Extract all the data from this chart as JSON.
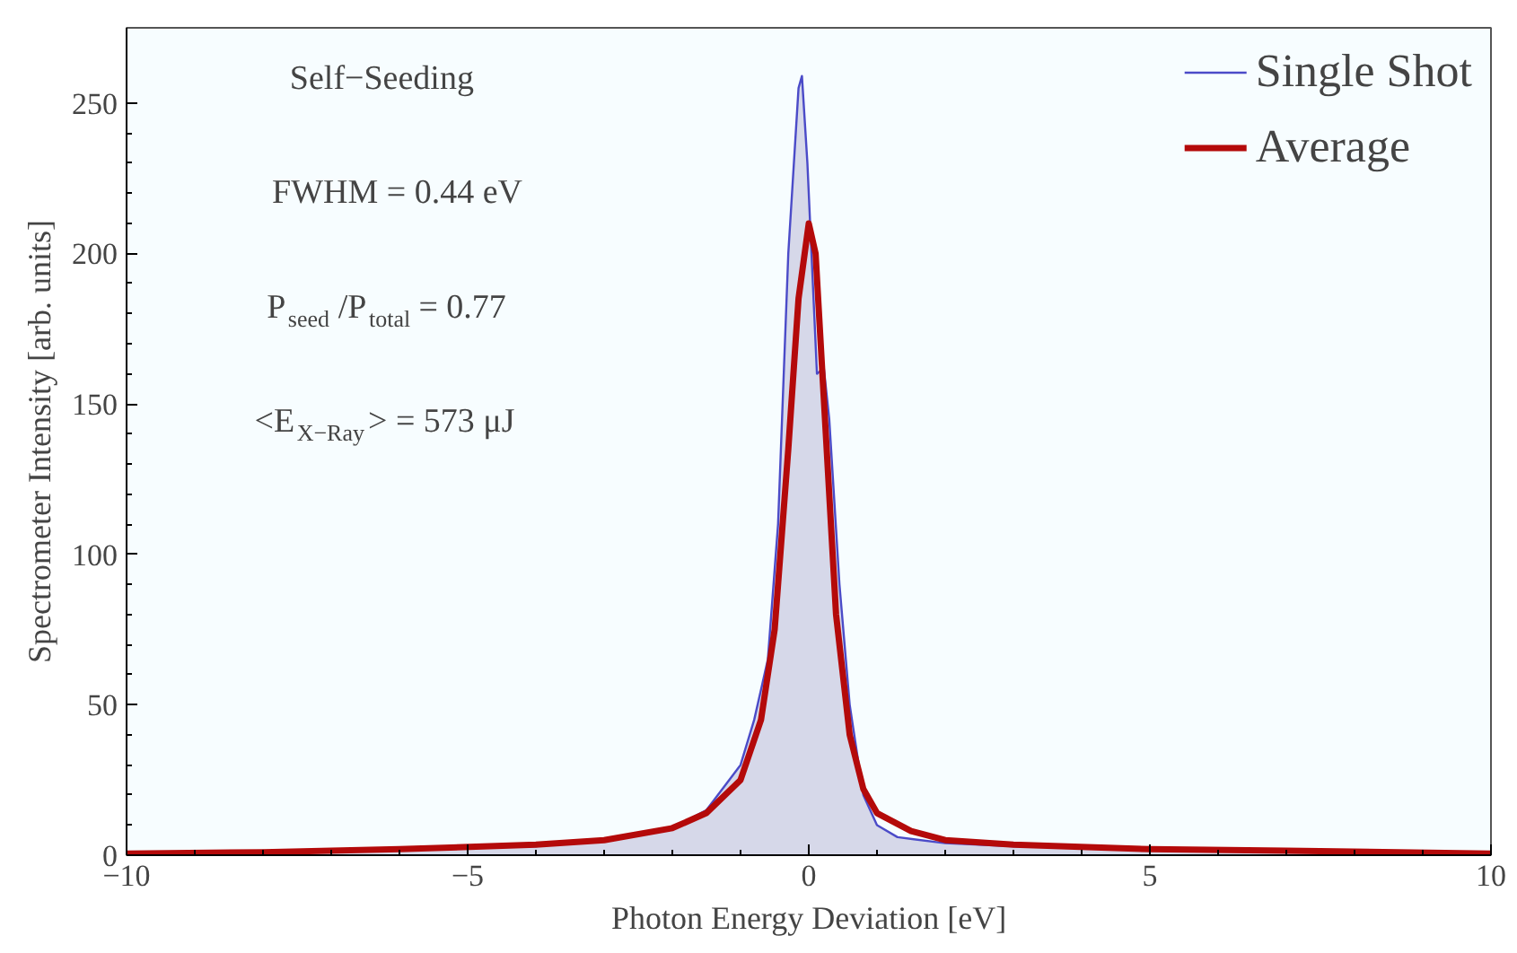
{
  "chart_data": {
    "type": "line",
    "xlabel": "Photon Energy Deviation [eV]",
    "ylabel": "Spectrometer Intensity [arb. units]",
    "xlim": [
      -10,
      10
    ],
    "ylim": [
      0,
      275
    ],
    "xticks": [
      {
        "value": -10,
        "label": "−10"
      },
      {
        "value": -5,
        "label": "−5"
      },
      0,
      5,
      10
    ],
    "yticks": [
      0,
      50,
      100,
      150,
      200,
      250
    ],
    "grid": false,
    "legend": "top right",
    "annotations": [
      "Self−Seeding",
      "FWHM = 0.44 eV",
      "P$_{seed}$/P$_{total}$ = 0.77",
      "<E$_{X−Ray}$> = 573 μJ"
    ],
    "series": [
      {
        "name": "Single Shot",
        "type": "area",
        "color": "#4b4bc8",
        "x": [
          -10,
          -8,
          -6,
          -4,
          -3,
          -2,
          -1.5,
          -1.0,
          -0.8,
          -0.6,
          -0.45,
          -0.3,
          -0.15,
          -0.1,
          -0.02,
          0.05,
          0.12,
          0.22,
          0.3,
          0.45,
          0.6,
          0.8,
          1.0,
          1.3,
          2,
          3,
          4,
          5,
          6.5,
          8,
          10
        ],
        "values": [
          0.5,
          1,
          2,
          3,
          5,
          9,
          15,
          30,
          45,
          65,
          110,
          200,
          255,
          259,
          230,
          195,
          160,
          162,
          145,
          90,
          50,
          20,
          10,
          6,
          4,
          3,
          2.5,
          2,
          2,
          1,
          0.5
        ]
      },
      {
        "name": "Average",
        "color": "#b40a0a",
        "x": [
          -10,
          -8,
          -6,
          -4,
          -3,
          -2,
          -1.5,
          -1,
          -0.7,
          -0.5,
          -0.3,
          -0.15,
          0,
          0.1,
          0.25,
          0.4,
          0.6,
          0.8,
          1,
          1.5,
          2,
          3,
          5,
          7,
          10
        ],
        "values": [
          0.5,
          1,
          2,
          3.5,
          5,
          9,
          14,
          25,
          45,
          75,
          135,
          185,
          210,
          200,
          140,
          80,
          40,
          22,
          14,
          8,
          5,
          3.5,
          2,
          1.5,
          0.5
        ]
      }
    ]
  }
}
